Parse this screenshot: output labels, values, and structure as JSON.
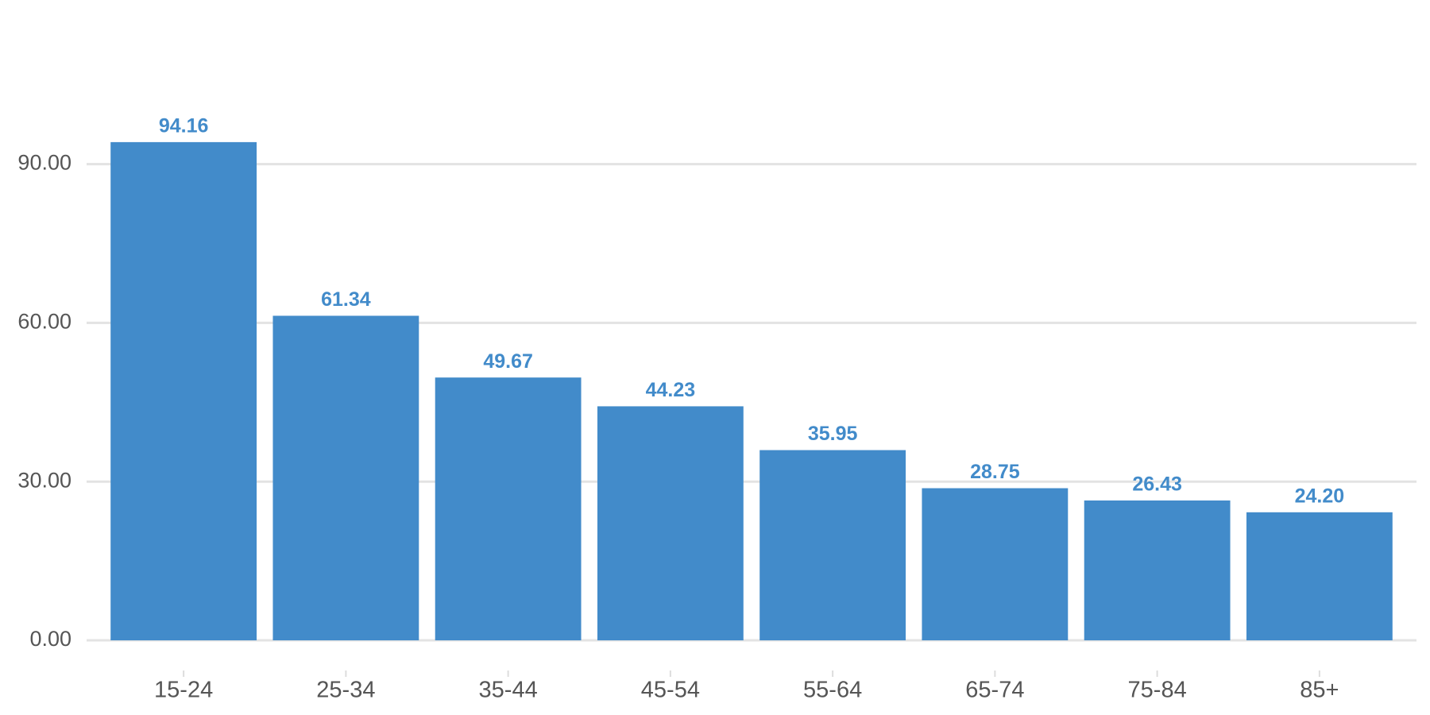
{
  "chart_data": {
    "type": "bar",
    "categories": [
      "15-24",
      "25-34",
      "35-44",
      "45-54",
      "55-64",
      "65-74",
      "75-84",
      "85+"
    ],
    "values": [
      94.16,
      61.34,
      49.67,
      44.23,
      35.95,
      28.75,
      26.43,
      24.2
    ],
    "value_labels": [
      "94.16",
      "61.34",
      "49.67",
      "44.23",
      "35.95",
      "28.75",
      "26.43",
      "24.20"
    ],
    "color": "#428bca",
    "ylim": [
      0,
      100
    ],
    "yticks": [
      {
        "value": 0,
        "label": "0.00"
      },
      {
        "value": 30,
        "label": "30.00"
      },
      {
        "value": 60,
        "label": "60.00"
      },
      {
        "value": 90,
        "label": "90.00"
      }
    ],
    "grid": true
  }
}
